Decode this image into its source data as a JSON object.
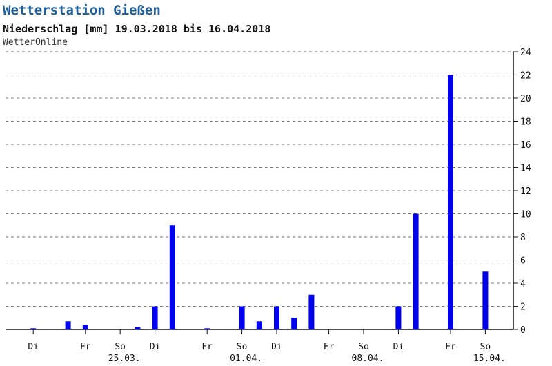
{
  "chart_data": {
    "type": "bar",
    "title": "Wetterstation Gießen",
    "subtitle": "Niederschlag [mm] 19.03.2018 bis 16.04.2018",
    "source": "WetterOnline",
    "start_date": "19.03.2018",
    "end_date": "16.04.2018",
    "ylim": [
      0,
      24
    ],
    "y_ticks": [
      0,
      2,
      4,
      6,
      8,
      10,
      12,
      14,
      16,
      18,
      20,
      22,
      24
    ],
    "grid": true,
    "bar_color": "#0000ee",
    "days": [
      {
        "date": "19.03.",
        "value": 0
      },
      {
        "date": "20.03.",
        "value": 0.1
      },
      {
        "date": "21.03.",
        "value": 0
      },
      {
        "date": "22.03.",
        "value": 0.7
      },
      {
        "date": "23.03.",
        "value": 0.4
      },
      {
        "date": "24.03.",
        "value": 0
      },
      {
        "date": "25.03.",
        "value": 0
      },
      {
        "date": "26.03.",
        "value": 0.2
      },
      {
        "date": "27.03.",
        "value": 2
      },
      {
        "date": "28.03.",
        "value": 9
      },
      {
        "date": "29.03.",
        "value": 0
      },
      {
        "date": "30.03.",
        "value": 0.1
      },
      {
        "date": "31.03.",
        "value": 0
      },
      {
        "date": "01.04.",
        "value": 2
      },
      {
        "date": "02.04.",
        "value": 0.7
      },
      {
        "date": "03.04.",
        "value": 2
      },
      {
        "date": "04.04.",
        "value": 1
      },
      {
        "date": "05.04.",
        "value": 3
      },
      {
        "date": "06.04.",
        "value": 0
      },
      {
        "date": "07.04.",
        "value": 0
      },
      {
        "date": "08.04.",
        "value": 0
      },
      {
        "date": "09.04.",
        "value": 0
      },
      {
        "date": "10.04.",
        "value": 2
      },
      {
        "date": "11.04.",
        "value": 10
      },
      {
        "date": "12.04.",
        "value": 0
      },
      {
        "date": "13.04.",
        "value": 22
      },
      {
        "date": "14.04.",
        "value": 0
      },
      {
        "date": "15.04.",
        "value": 5
      }
    ],
    "weekday_ticks": [
      {
        "date": "20.03.",
        "label": "Di"
      },
      {
        "date": "23.03.",
        "label": "Fr"
      },
      {
        "date": "25.03.",
        "label": "So"
      },
      {
        "date": "27.03.",
        "label": "Di"
      },
      {
        "date": "30.03.",
        "label": "Fr"
      },
      {
        "date": "01.04.",
        "label": "So"
      },
      {
        "date": "03.04.",
        "label": "Di"
      },
      {
        "date": "06.04.",
        "label": "Fr"
      },
      {
        "date": "08.04.",
        "label": "So"
      },
      {
        "date": "10.04.",
        "label": "Di"
      },
      {
        "date": "13.04.",
        "label": "Fr"
      },
      {
        "date": "15.04.",
        "label": "So"
      }
    ],
    "date_ticks": [
      {
        "date": "25.03.",
        "label": "25.03."
      },
      {
        "date": "01.04.",
        "label": "01.04."
      },
      {
        "date": "08.04.",
        "label": "08.04."
      },
      {
        "date": "15.04.",
        "label": "15.04."
      }
    ]
  }
}
